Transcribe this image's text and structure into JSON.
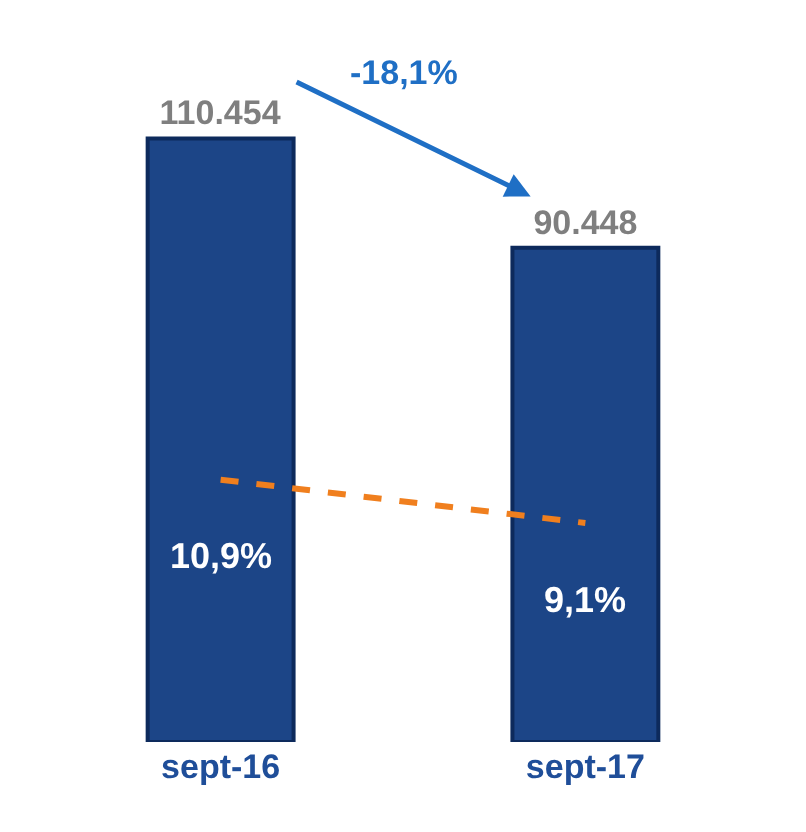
{
  "chart_data": {
    "type": "bar",
    "categories": [
      "sept-16",
      "sept-17"
    ],
    "series": [
      {
        "color": "#1c4587",
        "values": [
          110454,
          90448
        ],
        "value_labels": [
          "110.454",
          "90.448"
        ]
      },
      {
        "type": "line",
        "axis": "y2",
        "color": "#f07f1e",
        "values": [
          10.9,
          9.1
        ],
        "value_labels": [
          "10,9%",
          "9,1%"
        ],
        "line_style": "dashed",
        "marker": "none"
      }
    ],
    "annotations": [
      "-18,1%"
    ],
    "tick_labels": "x"
  }
}
